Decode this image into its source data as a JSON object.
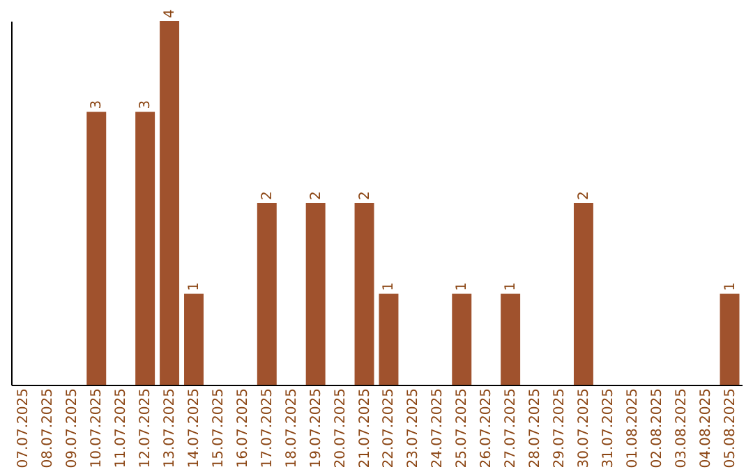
{
  "chart_data": {
    "type": "bar",
    "categories": [
      "07.07.2025",
      "08.07.2025",
      "09.07.2025",
      "10.07.2025",
      "11.07.2025",
      "12.07.2025",
      "13.07.2025",
      "14.07.2025",
      "15.07.2025",
      "16.07.2025",
      "17.07.2025",
      "18.07.2025",
      "19.07.2025",
      "20.07.2025",
      "21.07.2025",
      "22.07.2025",
      "23.07.2025",
      "24.07.2025",
      "25.07.2025",
      "26.07.2025",
      "27.07.2025",
      "28.07.2025",
      "29.07.2025",
      "30.07.2025",
      "31.07.2025",
      "01.08.2025",
      "02.08.2025",
      "03.08.2025",
      "04.08.2025",
      "05.08.2025"
    ],
    "values": [
      0,
      0,
      0,
      3,
      0,
      3,
      4,
      1,
      0,
      0,
      2,
      0,
      2,
      0,
      2,
      1,
      0,
      0,
      1,
      0,
      1,
      0,
      0,
      2,
      0,
      0,
      0,
      0,
      0,
      1
    ],
    "value_labels": [
      null,
      null,
      null,
      "3",
      null,
      "3",
      "4",
      "1",
      null,
      null,
      "2",
      null,
      "2",
      null,
      "2",
      "1",
      null,
      null,
      "1",
      null,
      "1",
      null,
      null,
      "2",
      null,
      null,
      null,
      null,
      null,
      "1"
    ],
    "color": "#a0522d",
    "ylim": [
      0,
      4
    ],
    "tick_labels": "x"
  }
}
